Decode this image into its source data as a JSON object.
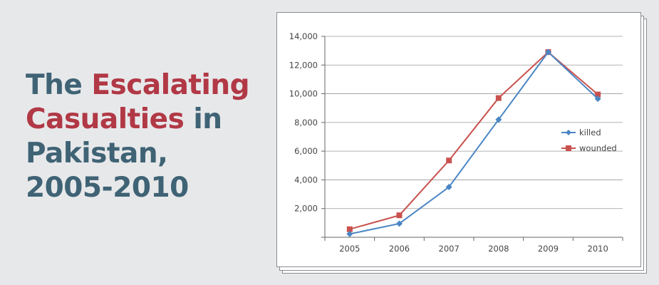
{
  "colors": {
    "background": "#e7e8ea",
    "title_dark": "#3f6375",
    "title_accent": "#b13845",
    "killed": "#4a86c4",
    "wounded": "#c9514e",
    "grid": "#9a9a9a",
    "axis_text": "#444444"
  },
  "headline": {
    "word1": "The ",
    "word2": "Escalating",
    "word3": "Casualties",
    "word4": " in",
    "word5": "Pakistan,",
    "word6": "2005-2010"
  },
  "chart_data": {
    "type": "line",
    "x": [
      "2005",
      "2006",
      "2007",
      "2008",
      "2009",
      "2010"
    ],
    "series": [
      {
        "name": "killed",
        "values": [
          230,
          950,
          3500,
          8200,
          12900,
          9650
        ],
        "marker": "diamond"
      },
      {
        "name": "wounded",
        "values": [
          560,
          1530,
          5350,
          9700,
          12900,
          9950
        ],
        "marker": "square"
      }
    ],
    "ylim": [
      0,
      14000
    ],
    "yticks": [
      0,
      2000,
      4000,
      6000,
      8000,
      10000,
      12000,
      14000
    ],
    "ytick_labels": [
      "",
      "2,000",
      "4,000",
      "6,000",
      "8,000",
      "10,000",
      "12,000",
      "14,000"
    ],
    "grid": true,
    "legend_position": "right"
  }
}
